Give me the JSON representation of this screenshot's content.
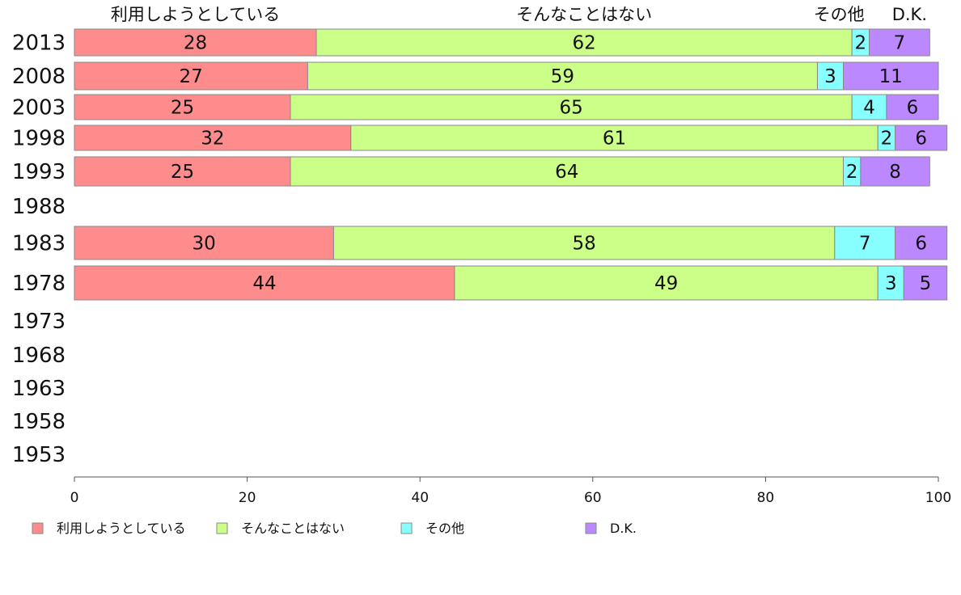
{
  "chart_data": {
    "type": "bar",
    "orientation": "horizontal",
    "stacked": true,
    "categories": [
      "2013",
      "2008",
      "2003",
      "1998",
      "1993",
      "1988",
      "1983",
      "1978",
      "1973",
      "1968",
      "1963",
      "1958",
      "1953"
    ],
    "series": [
      {
        "name": "利用しようとしている",
        "color": "#ff8c8c",
        "values": [
          28,
          27,
          25,
          32,
          25,
          null,
          30,
          44,
          null,
          null,
          null,
          null,
          null
        ]
      },
      {
        "name": "そんなことはない",
        "color": "#ccff88",
        "values": [
          62,
          59,
          65,
          61,
          64,
          null,
          58,
          49,
          null,
          null,
          null,
          null,
          null
        ]
      },
      {
        "name": "その他",
        "color": "#88ffff",
        "values": [
          2,
          3,
          4,
          2,
          2,
          null,
          7,
          3,
          null,
          null,
          null,
          null,
          null
        ]
      },
      {
        "name": "D.K.",
        "color": "#bb88ff",
        "values": [
          7,
          11,
          6,
          6,
          8,
          null,
          6,
          5,
          null,
          null,
          null,
          null,
          null
        ]
      }
    ],
    "column_headers": [
      "利用しようとしている",
      "そんなことはない",
      "その他",
      "D.K."
    ],
    "xlim": [
      0,
      100
    ],
    "xticks": [
      0,
      20,
      40,
      60,
      80,
      100
    ],
    "grid": false,
    "legend_position": "bottom"
  }
}
